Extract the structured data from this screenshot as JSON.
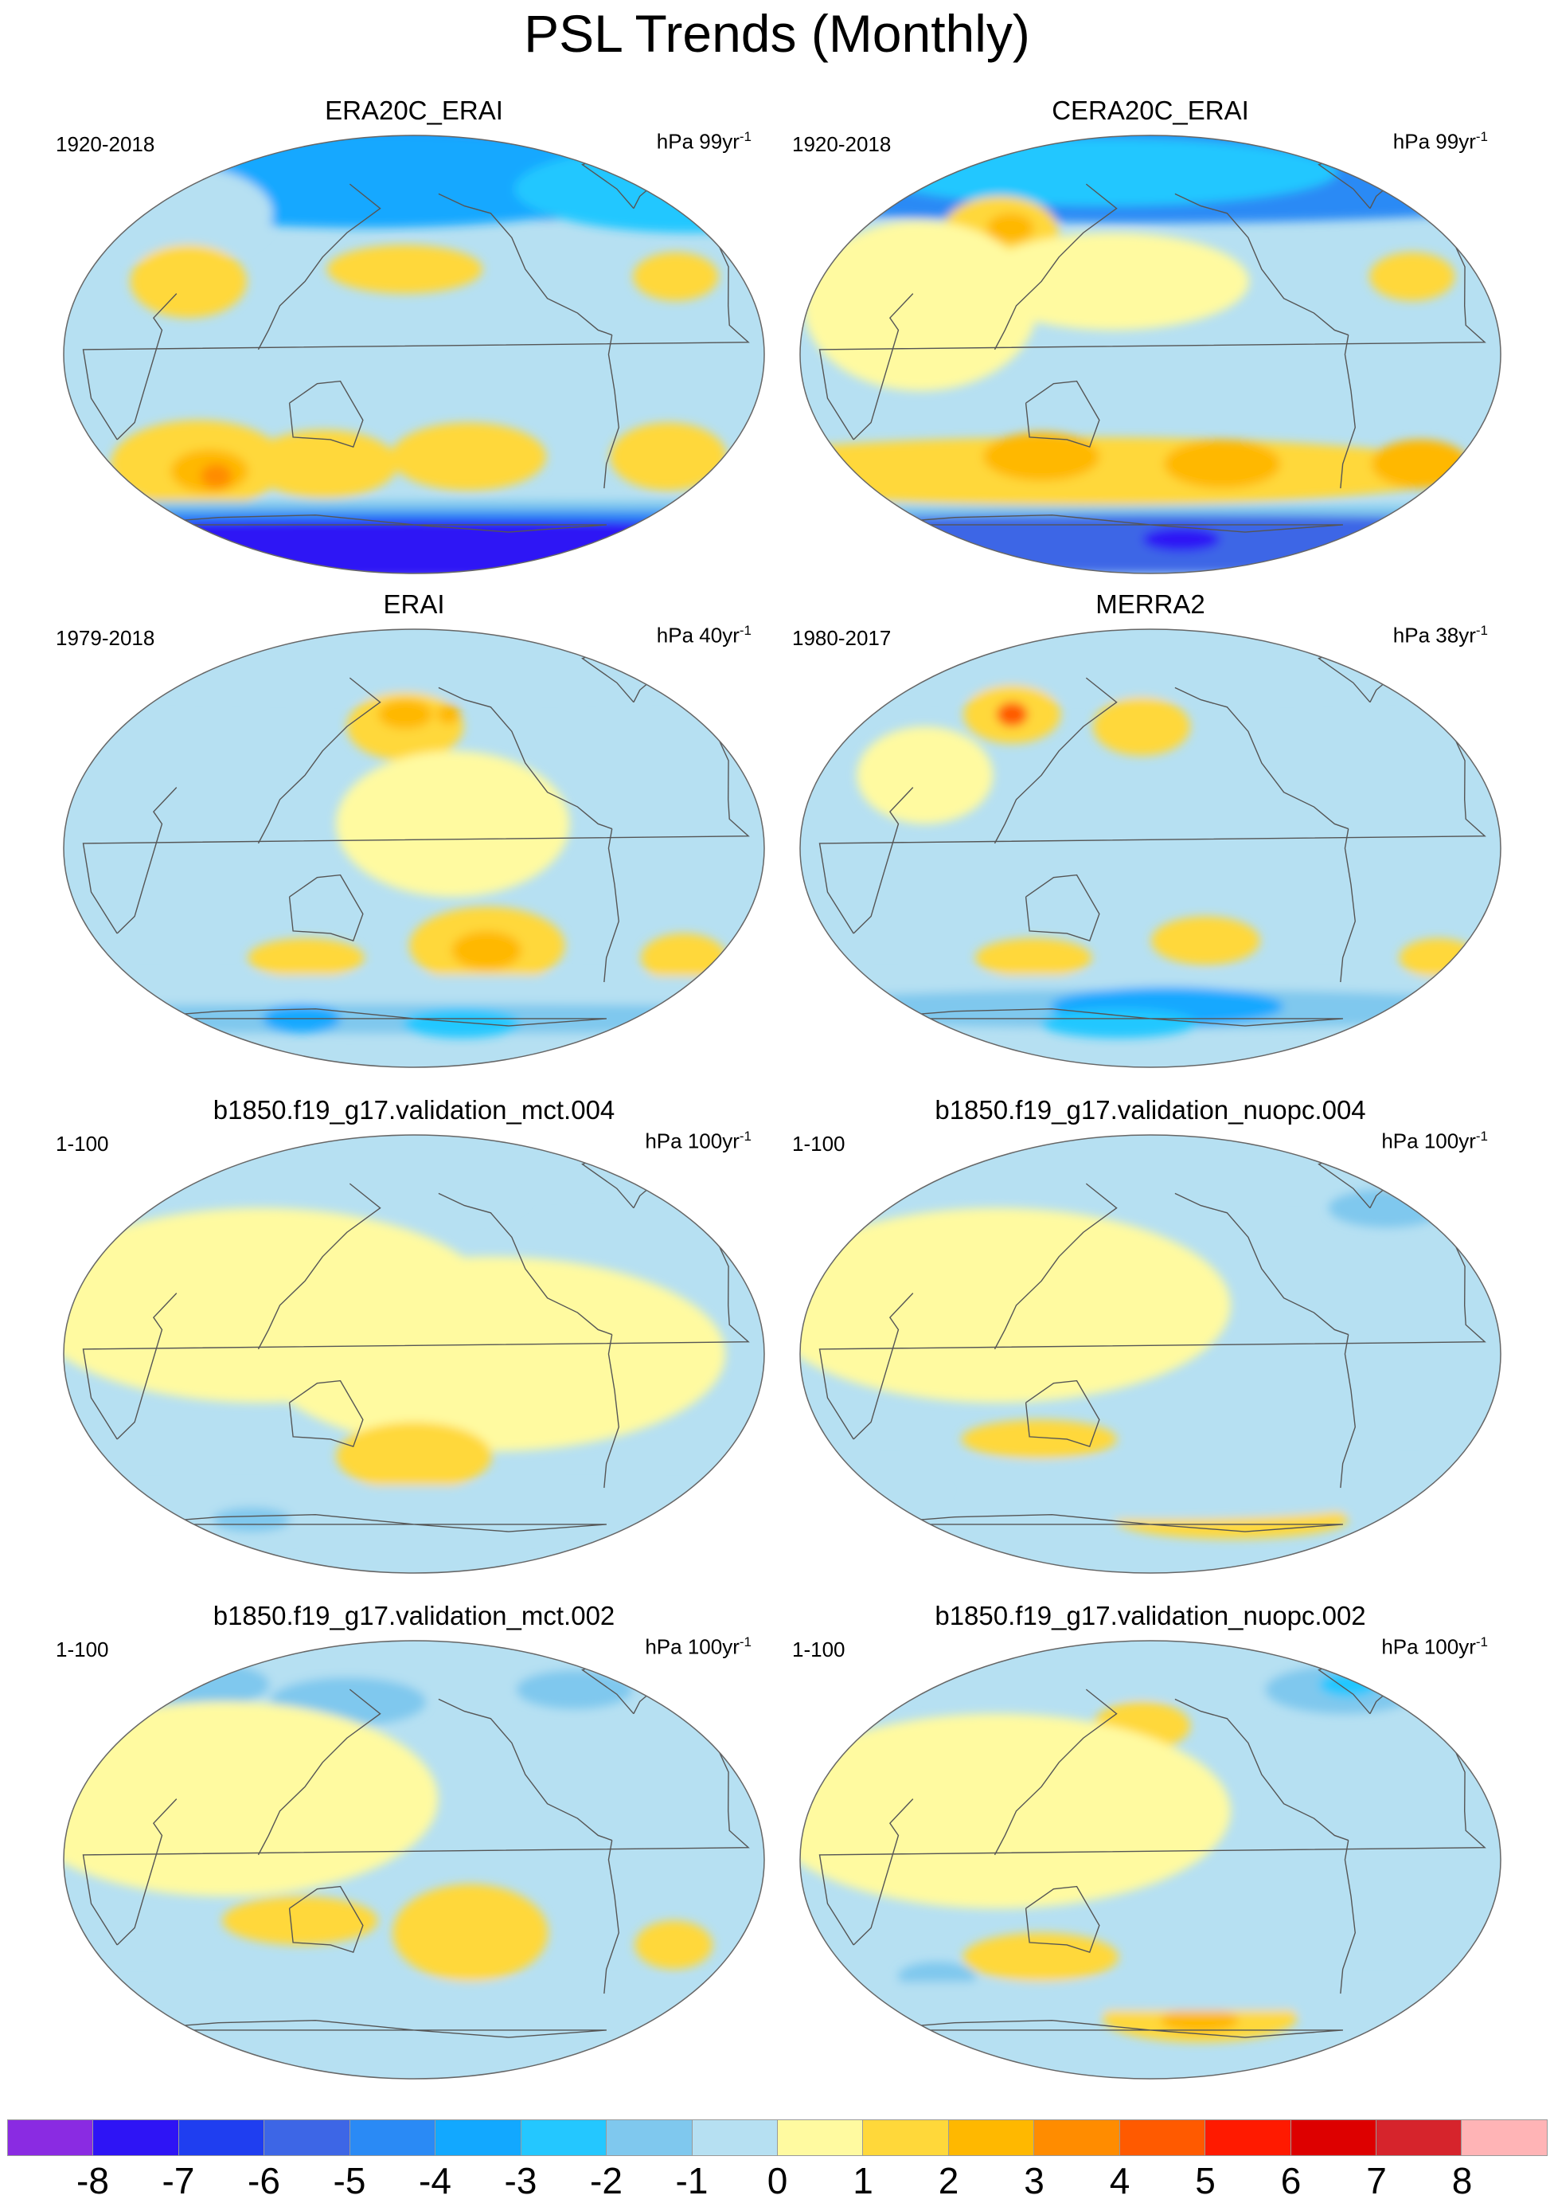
{
  "title": "PSL Trends (Monthly)",
  "panels": [
    {
      "title": "ERA20C_ERAI",
      "period": "1920-2018",
      "unit_base": "hPa 99yr",
      "unit_exp": "-1",
      "blobs": [
        {
          "lon": 180,
          "lat": 85,
          "rx": 340,
          "ry": 30,
          "level": -6
        },
        {
          "lon": 150,
          "lat": 72,
          "rx": 150,
          "ry": 20,
          "level": -4
        },
        {
          "lon": -10,
          "lat": 68,
          "rx": 90,
          "ry": 18,
          "level": -3
        },
        {
          "lon": 40,
          "lat": 58,
          "rx": 50,
          "ry": 20,
          "level": -1
        },
        {
          "lon": 175,
          "lat": 35,
          "rx": 40,
          "ry": 10,
          "level": 1
        },
        {
          "lon": -40,
          "lat": 32,
          "rx": 22,
          "ry": 10,
          "level": 1
        },
        {
          "lon": 60,
          "lat": 30,
          "rx": 30,
          "ry": 15,
          "level": 1
        },
        {
          "lon": 60,
          "lat": -45,
          "rx": 45,
          "ry": 18,
          "level": 1
        },
        {
          "lon": 65,
          "lat": -48,
          "rx": 20,
          "ry": 9,
          "level": 2
        },
        {
          "lon": 68,
          "lat": -50,
          "rx": 8,
          "ry": 5,
          "level": 3
        },
        {
          "lon": 130,
          "lat": -45,
          "rx": 38,
          "ry": 14,
          "level": 1
        },
        {
          "lon": -150,
          "lat": -42,
          "rx": 40,
          "ry": 14,
          "level": 1
        },
        {
          "lon": -40,
          "lat": -42,
          "rx": 30,
          "ry": 14,
          "level": 1
        },
        {
          "lon": 180,
          "lat": -64,
          "rx": 360,
          "ry": 4,
          "level": -2
        },
        {
          "lon": 180,
          "lat": -68,
          "rx": 360,
          "ry": 4,
          "level": -5
        },
        {
          "lon": 180,
          "lat": -80,
          "rx": 360,
          "ry": 12,
          "level": -8
        }
      ]
    },
    {
      "title": "CERA20C_ERAI",
      "period": "1920-2018",
      "unit_base": "hPa 99yr",
      "unit_exp": "-1",
      "blobs": [
        {
          "lon": 180,
          "lat": 84,
          "rx": 340,
          "ry": 30,
          "level": -5
        },
        {
          "lon": 150,
          "lat": 75,
          "rx": 120,
          "ry": 14,
          "level": -3
        },
        {
          "lon": 95,
          "lat": 50,
          "rx": 30,
          "ry": 15,
          "level": 1
        },
        {
          "lon": 100,
          "lat": 52,
          "rx": 12,
          "ry": 6,
          "level": 2
        },
        {
          "lon": 160,
          "lat": 30,
          "rx": 70,
          "ry": 20,
          "level": 0.5
        },
        {
          "lon": -40,
          "lat": 32,
          "rx": 22,
          "ry": 10,
          "level": 1
        },
        {
          "lon": 60,
          "lat": 20,
          "rx": 60,
          "ry": 35,
          "level": 0.5
        },
        {
          "lon": 140,
          "lat": -48,
          "rx": 200,
          "ry": 14,
          "level": 1
        },
        {
          "lon": 120,
          "lat": -42,
          "rx": 30,
          "ry": 10,
          "level": 2
        },
        {
          "lon": -140,
          "lat": -45,
          "rx": 30,
          "ry": 10,
          "level": 2
        },
        {
          "lon": -30,
          "lat": -45,
          "rx": 25,
          "ry": 10,
          "level": 2
        },
        {
          "lon": 180,
          "lat": -66,
          "rx": 360,
          "ry": 4,
          "level": -2
        },
        {
          "lon": 180,
          "lat": -78,
          "rx": 360,
          "ry": 12,
          "level": -6
        },
        {
          "lon": -160,
          "lat": -76,
          "rx": 20,
          "ry": 5,
          "level": -8
        }
      ]
    },
    {
      "title": "ERAI",
      "period": "1979-2018",
      "unit_base": "hPa 40yr",
      "unit_exp": "-1",
      "blobs": [
        {
          "lon": 180,
          "lat": 82,
          "rx": 340,
          "ry": 20,
          "level": -1
        },
        {
          "lon": 175,
          "lat": 50,
          "rx": 30,
          "ry": 14,
          "level": 1
        },
        {
          "lon": 175,
          "lat": 55,
          "rx": 14,
          "ry": 6,
          "level": 2
        },
        {
          "lon": 200,
          "lat": 55,
          "rx": 6,
          "ry": 4,
          "level": 2
        },
        {
          "lon": 200,
          "lat": 10,
          "rx": 60,
          "ry": 30,
          "level": 0.5
        },
        {
          "lon": -140,
          "lat": -40,
          "rx": 40,
          "ry": 16,
          "level": 1
        },
        {
          "lon": -140,
          "lat": -42,
          "rx": 18,
          "ry": 8,
          "level": 2
        },
        {
          "lon": -30,
          "lat": -45,
          "rx": 22,
          "ry": 10,
          "level": 1
        },
        {
          "lon": 120,
          "lat": -45,
          "rx": 30,
          "ry": 8,
          "level": 1
        },
        {
          "lon": 180,
          "lat": -60,
          "rx": 360,
          "ry": 8,
          "level": -1
        },
        {
          "lon": 180,
          "lat": -70,
          "rx": 360,
          "ry": 6,
          "level": -2
        },
        {
          "lon": 110,
          "lat": -70,
          "rx": 20,
          "ry": 6,
          "level": -4
        },
        {
          "lon": -150,
          "lat": -72,
          "rx": 30,
          "ry": 6,
          "level": -3
        }
      ]
    },
    {
      "title": "MERRA2",
      "period": "1980-2017",
      "unit_base": "hPa 38yr",
      "unit_exp": "-1",
      "blobs": [
        {
          "lon": 180,
          "lat": 82,
          "rx": 340,
          "ry": 20,
          "level": -1
        },
        {
          "lon": 100,
          "lat": 55,
          "rx": 25,
          "ry": 12,
          "level": 1
        },
        {
          "lon": 100,
          "lat": 55,
          "rx": 8,
          "ry": 5,
          "level": 4
        },
        {
          "lon": 175,
          "lat": 50,
          "rx": 25,
          "ry": 12,
          "level": 1
        },
        {
          "lon": 60,
          "lat": 30,
          "rx": 35,
          "ry": 20,
          "level": 0.5
        },
        {
          "lon": -150,
          "lat": -38,
          "rx": 28,
          "ry": 10,
          "level": 1
        },
        {
          "lon": 115,
          "lat": -45,
          "rx": 30,
          "ry": 8,
          "level": 1
        },
        {
          "lon": -20,
          "lat": -45,
          "rx": 20,
          "ry": 8,
          "level": 1
        },
        {
          "lon": 180,
          "lat": -60,
          "rx": 360,
          "ry": 8,
          "level": -1
        },
        {
          "lon": 180,
          "lat": -66,
          "rx": 200,
          "ry": 8,
          "level": -2
        },
        {
          "lon": -170,
          "lat": -65,
          "rx": 60,
          "ry": 8,
          "level": -4
        },
        {
          "lon": 160,
          "lat": -72,
          "rx": 40,
          "ry": 6,
          "level": -3
        }
      ]
    },
    {
      "title": "b1850.f19_g17.validation_mct.004",
      "period": "1-100",
      "unit_base": "hPa 100yr",
      "unit_exp": "-1",
      "blobs": [
        {
          "lon": 180,
          "lat": 80,
          "rx": 200,
          "ry": 15,
          "level": -1
        },
        {
          "lon": 200,
          "lat": 65,
          "rx": 40,
          "ry": 10,
          "level": -1
        },
        {
          "lon": 100,
          "lat": 20,
          "rx": 120,
          "ry": 40,
          "level": 0.5
        },
        {
          "lon": -140,
          "lat": 0,
          "rx": 120,
          "ry": 40,
          "level": 0.5
        },
        {
          "lon": 180,
          "lat": -42,
          "rx": 40,
          "ry": 14,
          "level": 1
        },
        {
          "lon": 180,
          "lat": -62,
          "rx": 360,
          "ry": 8,
          "level": -1
        },
        {
          "lon": 80,
          "lat": -68,
          "rx": 20,
          "ry": 5,
          "level": -2
        },
        {
          "lon": 180,
          "lat": -80,
          "rx": 100,
          "ry": 6,
          "level": -1
        }
      ]
    },
    {
      "title": "b1850.f19_g17.validation_nuopc.004",
      "period": "1-100",
      "unit_base": "hPa 100yr",
      "unit_exp": "-1",
      "blobs": [
        {
          "lon": 180,
          "lat": 80,
          "rx": 340,
          "ry": 15,
          "level": -1
        },
        {
          "lon": -10,
          "lat": 70,
          "rx": 20,
          "ry": 8,
          "level": 1
        },
        {
          "lon": -15,
          "lat": 72,
          "rx": 6,
          "ry": 4,
          "level": 2
        },
        {
          "lon": -40,
          "lat": 60,
          "rx": 30,
          "ry": 8,
          "level": -2
        },
        {
          "lon": 100,
          "lat": 20,
          "rx": 120,
          "ry": 40,
          "level": 0.5
        },
        {
          "lon": 120,
          "lat": -35,
          "rx": 40,
          "ry": 8,
          "level": 1
        },
        {
          "lon": 180,
          "lat": -50,
          "rx": 360,
          "ry": 6,
          "level": -1
        },
        {
          "lon": -130,
          "lat": -68,
          "rx": 60,
          "ry": 8,
          "level": 1
        },
        {
          "lon": 180,
          "lat": -60,
          "rx": 120,
          "ry": 8,
          "level": -1
        }
      ]
    },
    {
      "title": "b1850.f19_g17.validation_mct.002",
      "period": "1-100",
      "unit_base": "hPa 100yr",
      "unit_exp": "-1",
      "blobs": [
        {
          "lon": 180,
          "lat": 82,
          "rx": 340,
          "ry": 15,
          "level": -1
        },
        {
          "lon": 40,
          "lat": 72,
          "rx": 40,
          "ry": 10,
          "level": -2
        },
        {
          "lon": 140,
          "lat": 65,
          "rx": 40,
          "ry": 10,
          "level": -2
        },
        {
          "lon": -80,
          "lat": 70,
          "rx": 30,
          "ry": 8,
          "level": -2
        },
        {
          "lon": 80,
          "lat": 25,
          "rx": 110,
          "ry": 40,
          "level": 0.5
        },
        {
          "lon": 120,
          "lat": -25,
          "rx": 40,
          "ry": 10,
          "level": 1
        },
        {
          "lon": -150,
          "lat": -30,
          "rx": 40,
          "ry": 20,
          "level": 1
        },
        {
          "lon": -40,
          "lat": -35,
          "rx": 20,
          "ry": 10,
          "level": 1
        },
        {
          "lon": 180,
          "lat": -58,
          "rx": 360,
          "ry": 8,
          "level": -1
        }
      ]
    },
    {
      "title": "b1850.f19_g17.validation_nuopc.002",
      "period": "1-100",
      "unit_base": "hPa 100yr",
      "unit_exp": "-1",
      "blobs": [
        {
          "lon": 180,
          "lat": 82,
          "rx": 340,
          "ry": 15,
          "level": -1
        },
        {
          "lon": -60,
          "lat": 70,
          "rx": 40,
          "ry": 10,
          "level": -2
        },
        {
          "lon": -55,
          "lat": 72,
          "rx": 15,
          "ry": 5,
          "level": -3
        },
        {
          "lon": 175,
          "lat": 55,
          "rx": 25,
          "ry": 10,
          "level": 1
        },
        {
          "lon": 100,
          "lat": 20,
          "rx": 120,
          "ry": 40,
          "level": 0.5
        },
        {
          "lon": 120,
          "lat": -40,
          "rx": 40,
          "ry": 10,
          "level": 1
        },
        {
          "lon": -150,
          "lat": -65,
          "rx": 50,
          "ry": 10,
          "level": 1
        },
        {
          "lon": -150,
          "lat": -66,
          "rx": 20,
          "ry": 5,
          "level": 2
        },
        {
          "lon": 60,
          "lat": -48,
          "rx": 20,
          "ry": 6,
          "level": -2
        },
        {
          "lon": 180,
          "lat": -56,
          "rx": 360,
          "ry": 6,
          "level": -1
        }
      ]
    }
  ],
  "colorbar": {
    "labels": [
      "-8",
      "-7",
      "-6",
      "-5",
      "-4",
      "-3",
      "-2",
      "-1",
      "0",
      "1",
      "2",
      "3",
      "4",
      "5",
      "6",
      "7",
      "8"
    ],
    "colors": [
      "#8a2be2",
      "#2e14f5",
      "#1f3ef0",
      "#3d66e6",
      "#2a8af5",
      "#12a8ff",
      "#24c7ff",
      "#7fc8ee",
      "#b6e0f2",
      "#fffaa0",
      "#ffd83a",
      "#ffb800",
      "#ff8c00",
      "#ff5a00",
      "#ff1a00",
      "#dd0000",
      "#d6242c",
      "#ffb4b6"
    ]
  },
  "map_style": {
    "ocean_base": "#b6e0f2",
    "coast": "#555555",
    "border": "#666666"
  }
}
